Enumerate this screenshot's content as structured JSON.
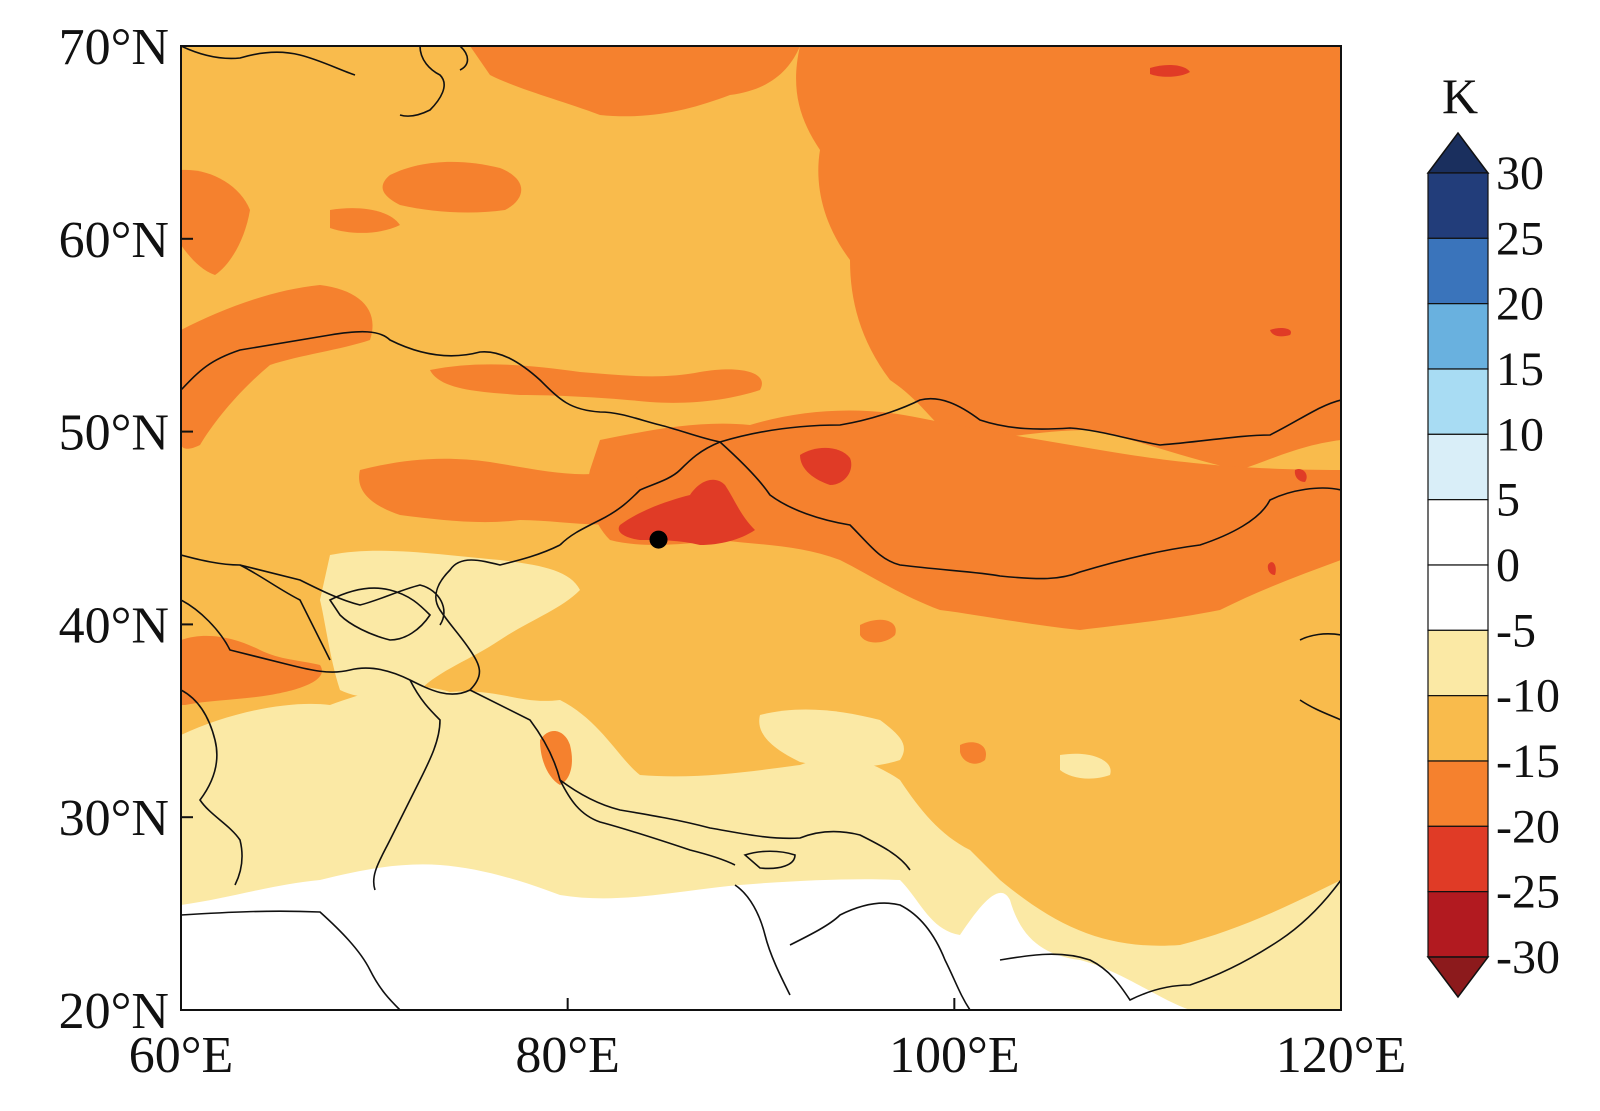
{
  "map": {
    "lon_range": [
      60,
      120
    ],
    "lat_range": [
      20,
      70
    ],
    "x_ticks": [
      "60°E",
      "80°E",
      "100°E",
      "120°E"
    ],
    "y_ticks": [
      "20°N",
      "30°N",
      "40°N",
      "50°N",
      "60°N",
      "70°N"
    ],
    "marker": {
      "lon": 84.7,
      "lat": 44.4,
      "color": "#000000"
    }
  },
  "colorbar": {
    "unit": "K",
    "extend": "both",
    "tick_labels": [
      "30",
      "25",
      "20",
      "15",
      "10",
      "5",
      "0",
      "-5",
      "-10",
      "-15",
      "-20",
      "-25",
      "-30"
    ],
    "levels": [
      {
        "range": "25 to 30",
        "color": "#223d7a"
      },
      {
        "range": "20 to 25",
        "color": "#3a74bb"
      },
      {
        "range": "15 to 20",
        "color": "#69b1df"
      },
      {
        "range": "10 to 15",
        "color": "#a8dcf3"
      },
      {
        "range": "5 to 10",
        "color": "#d9eef8"
      },
      {
        "range": "0 to 5",
        "color": "#ffffff"
      },
      {
        "range": "-5 to 0",
        "color": "#ffffff"
      },
      {
        "range": "-10 to -5",
        "color": "#fbe9a5"
      },
      {
        "range": "-15 to -10",
        "color": "#f9bb4c"
      },
      {
        "range": "-20 to -15",
        "color": "#f5812e"
      },
      {
        "range": "-25 to -20",
        "color": "#e03b26"
      },
      {
        "range": "-30 to -25",
        "color": "#b21a20"
      }
    ],
    "top_extension_color": "#1a2f5e",
    "bottom_extension_color": "#8c1a1c"
  }
}
